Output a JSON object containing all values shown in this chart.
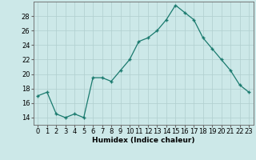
{
  "x": [
    0,
    1,
    2,
    3,
    4,
    5,
    6,
    7,
    8,
    9,
    10,
    11,
    12,
    13,
    14,
    15,
    16,
    17,
    18,
    19,
    20,
    21,
    22,
    23
  ],
  "y": [
    17,
    17.5,
    14.5,
    14,
    14.5,
    14,
    19.5,
    19.5,
    19,
    20.5,
    22,
    24.5,
    25,
    26,
    27.5,
    29.5,
    28.5,
    27.5,
    25,
    23.5,
    22,
    20.5,
    18.5,
    17.5
  ],
  "line_color": "#1a7a6e",
  "marker": "+",
  "marker_size": 3,
  "bg_color": "#cce8e8",
  "grid_color": "#b0cece",
  "axis_color": "#666666",
  "xlabel": "Humidex (Indice chaleur)",
  "xlim": [
    -0.5,
    23.5
  ],
  "ylim": [
    13,
    30
  ],
  "yticks": [
    14,
    16,
    18,
    20,
    22,
    24,
    26,
    28
  ],
  "xticks": [
    0,
    1,
    2,
    3,
    4,
    5,
    6,
    7,
    8,
    9,
    10,
    11,
    12,
    13,
    14,
    15,
    16,
    17,
    18,
    19,
    20,
    21,
    22,
    23
  ],
  "label_fontsize": 6.5,
  "tick_fontsize": 6
}
